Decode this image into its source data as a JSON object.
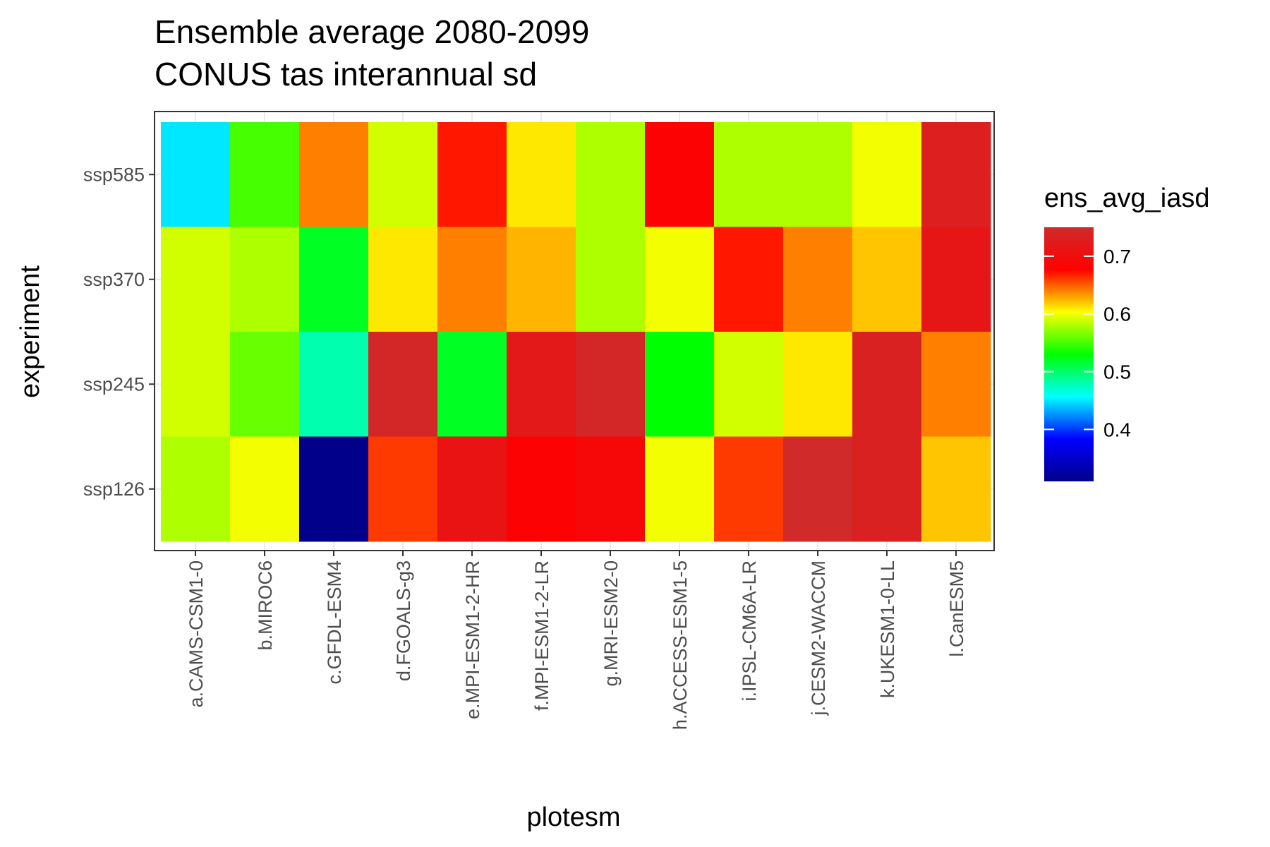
{
  "chart_data": {
    "type": "heatmap",
    "title_lines": [
      "Ensemble average 2080-2099",
      "CONUS tas interannual sd"
    ],
    "xlabel": "plotesm",
    "ylabel": "experiment",
    "x_categories": [
      "a.CAMS-CSM1-0",
      "b.MIROC6",
      "c.GFDL-ESM4",
      "d.FGOALS-g3",
      "e.MPI-ESM1-2-HR",
      "f.MPI-ESM1-2-LR",
      "g.MRI-ESM2-0",
      "h.ACCESS-ESM1-5",
      "i.IPSL-CM6A-LR",
      "j.CESM2-WACCM",
      "k.UKESM1-0-LL",
      "l.CanESM5"
    ],
    "y_categories": [
      "ssp585",
      "ssp370",
      "ssp245",
      "ssp126"
    ],
    "values": [
      [
        0.45,
        0.55,
        0.64,
        0.59,
        0.67,
        0.61,
        0.58,
        0.68,
        0.58,
        0.58,
        0.6,
        0.73
      ],
      [
        0.59,
        0.58,
        0.52,
        0.61,
        0.64,
        0.625,
        0.58,
        0.6,
        0.67,
        0.64,
        0.62,
        0.715
      ],
      [
        0.59,
        0.56,
        0.48,
        0.745,
        0.52,
        0.72,
        0.745,
        0.53,
        0.59,
        0.61,
        0.735,
        0.64
      ],
      [
        0.58,
        0.6,
        0.31,
        0.66,
        0.71,
        0.68,
        0.69,
        0.6,
        0.66,
        0.75,
        0.735,
        0.62
      ]
    ],
    "legend": {
      "title": "ens_avg_iasd",
      "ticks": [
        0.4,
        0.5,
        0.6,
        0.7
      ],
      "tick_labels": [
        "0.4",
        "0.5",
        "0.6",
        "0.7"
      ],
      "range": [
        0.31,
        0.75
      ]
    },
    "colors": {
      "stops": [
        "#00008b",
        "#0000ff",
        "#00ffff",
        "#00ff00",
        "#ffff00",
        "#ff0000",
        "#d02a2a"
      ],
      "grid": "#ebebeb",
      "panel_border": "#333333"
    }
  }
}
